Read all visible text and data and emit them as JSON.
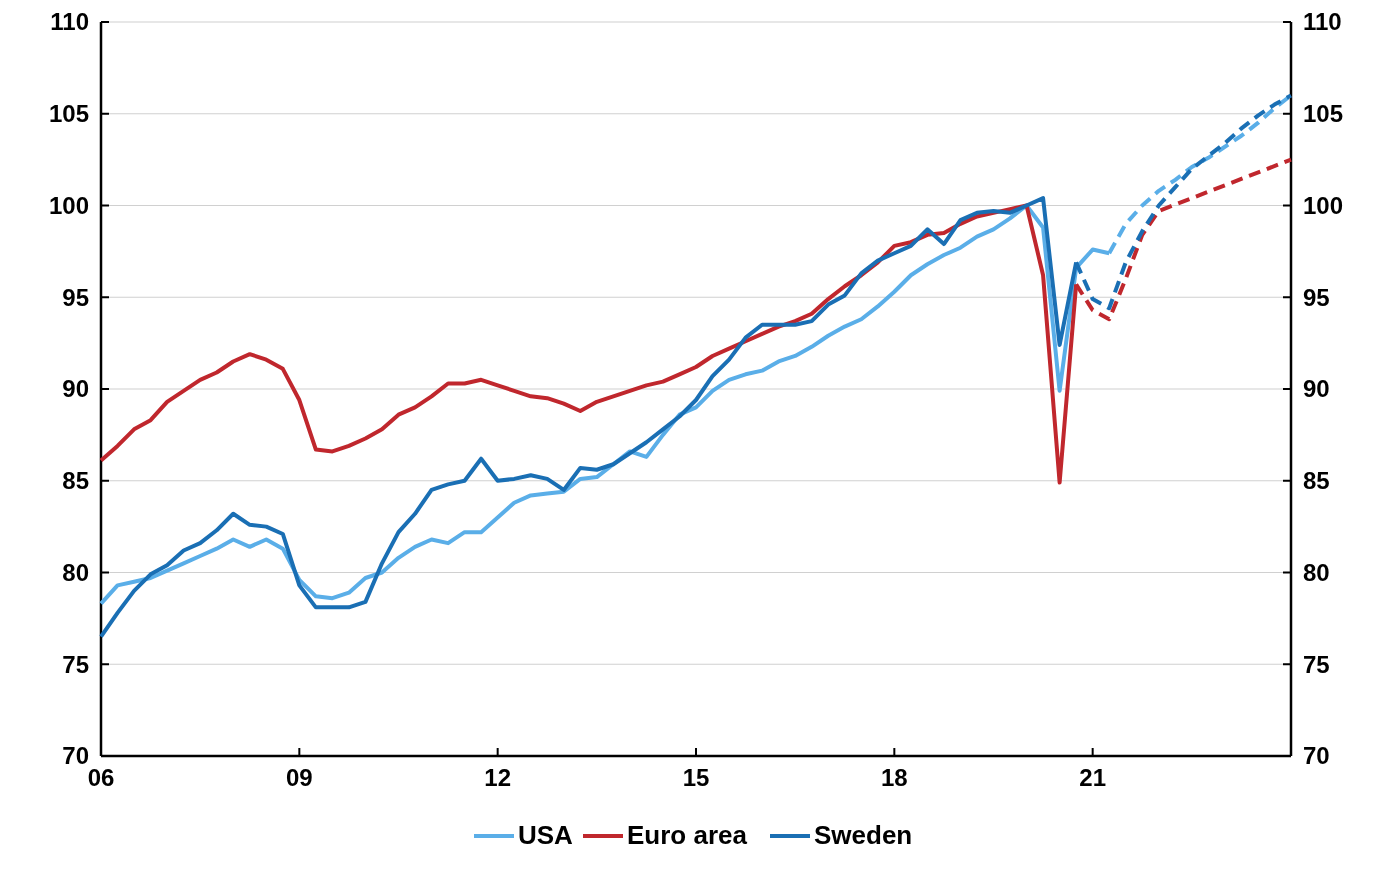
{
  "chart_data": {
    "type": "line",
    "xlim": [
      2006,
      2024
    ],
    "xticks": [
      {
        "value": 2006,
        "label": "06"
      },
      {
        "value": 2009,
        "label": "09"
      },
      {
        "value": 2012,
        "label": "12"
      },
      {
        "value": 2015,
        "label": "15"
      },
      {
        "value": 2018,
        "label": "18"
      },
      {
        "value": 2021,
        "label": "21"
      }
    ],
    "ylim": [
      70,
      110
    ],
    "yticks": [
      70,
      75,
      80,
      85,
      90,
      95,
      100,
      105,
      110
    ],
    "y2lim": [
      70,
      110
    ],
    "y2ticks": [
      70,
      75,
      80,
      85,
      90,
      95,
      100,
      105,
      110
    ],
    "grid": "y",
    "legend": "bottom",
    "series": [
      {
        "name": "USA",
        "color": "#5aaee8",
        "line_style": "solid",
        "x": [
          2006,
          2006.25,
          2006.5,
          2006.75,
          2007,
          2007.25,
          2007.5,
          2007.75,
          2008,
          2008.25,
          2008.5,
          2008.75,
          2009,
          2009.25,
          2009.5,
          2009.75,
          2010,
          2010.25,
          2010.5,
          2010.75,
          2011,
          2011.25,
          2011.5,
          2011.75,
          2012,
          2012.25,
          2012.5,
          2012.75,
          2013,
          2013.25,
          2013.5,
          2013.75,
          2014,
          2014.25,
          2014.5,
          2014.75,
          2015,
          2015.25,
          2015.5,
          2015.75,
          2016,
          2016.25,
          2016.5,
          2016.75,
          2017,
          2017.25,
          2017.5,
          2017.75,
          2018,
          2018.25,
          2018.5,
          2018.75,
          2019,
          2019.25,
          2019.5,
          2019.75,
          2020,
          2020.25,
          2020.5,
          2020.75,
          2021,
          2021.25
        ],
        "values": [
          78.3,
          79.3,
          79.5,
          79.7,
          80.1,
          80.5,
          80.9,
          81.3,
          81.8,
          81.4,
          81.8,
          81.3,
          79.6,
          78.7,
          78.6,
          78.9,
          79.7,
          80.0,
          80.8,
          81.4,
          81.8,
          81.6,
          82.2,
          82.2,
          83.0,
          83.8,
          84.2,
          84.3,
          84.4,
          85.1,
          85.2,
          85.9,
          86.6,
          86.3,
          87.5,
          88.6,
          89.0,
          89.9,
          90.5,
          90.8,
          91.0,
          91.5,
          91.8,
          92.3,
          92.9,
          93.4,
          93.8,
          94.5,
          95.3,
          96.2,
          96.8,
          97.3,
          97.7,
          98.3,
          98.7,
          99.3,
          100.0,
          98.8,
          89.9,
          96.6,
          97.6,
          97.4
        ]
      },
      {
        "name": "Euro area",
        "color": "#c0272d",
        "line_style": "solid",
        "x": [
          2006,
          2006.25,
          2006.5,
          2006.75,
          2007,
          2007.25,
          2007.5,
          2007.75,
          2008,
          2008.25,
          2008.5,
          2008.75,
          2009,
          2009.25,
          2009.5,
          2009.75,
          2010,
          2010.25,
          2010.5,
          2010.75,
          2011,
          2011.25,
          2011.5,
          2011.75,
          2012,
          2012.25,
          2012.5,
          2012.75,
          2013,
          2013.25,
          2013.5,
          2013.75,
          2014,
          2014.25,
          2014.5,
          2014.75,
          2015,
          2015.25,
          2015.5,
          2015.75,
          2016,
          2016.25,
          2016.5,
          2016.75,
          2017,
          2017.25,
          2017.5,
          2017.75,
          2018,
          2018.25,
          2018.5,
          2018.75,
          2019,
          2019.25,
          2019.5,
          2019.75,
          2020,
          2020.25,
          2020.5,
          2020.75
        ],
        "values": [
          86.1,
          86.9,
          87.8,
          88.3,
          89.3,
          89.9,
          90.5,
          90.9,
          91.5,
          91.9,
          91.6,
          91.1,
          89.4,
          86.7,
          86.6,
          86.9,
          87.3,
          87.8,
          88.6,
          89.0,
          89.6,
          90.3,
          90.3,
          90.5,
          90.2,
          89.9,
          89.6,
          89.5,
          89.2,
          88.8,
          89.3,
          89.6,
          89.9,
          90.2,
          90.4,
          90.8,
          91.2,
          91.8,
          92.2,
          92.6,
          93.0,
          93.4,
          93.7,
          94.1,
          94.9,
          95.6,
          96.2,
          96.9,
          97.8,
          98.0,
          98.4,
          98.5,
          99.0,
          99.4,
          99.6,
          99.8,
          100.0,
          96.2,
          84.9,
          95.7
        ]
      },
      {
        "name": "Sweden",
        "color": "#1a6fb4",
        "line_style": "solid",
        "x": [
          2006,
          2006.25,
          2006.5,
          2006.75,
          2007,
          2007.25,
          2007.5,
          2007.75,
          2008,
          2008.25,
          2008.5,
          2008.75,
          2009,
          2009.25,
          2009.5,
          2009.75,
          2010,
          2010.25,
          2010.5,
          2010.75,
          2011,
          2011.25,
          2011.5,
          2011.75,
          2012,
          2012.25,
          2012.5,
          2012.75,
          2013,
          2013.25,
          2013.5,
          2013.75,
          2014,
          2014.25,
          2014.5,
          2014.75,
          2015,
          2015.25,
          2015.5,
          2015.75,
          2016,
          2016.25,
          2016.5,
          2016.75,
          2017,
          2017.25,
          2017.5,
          2017.75,
          2018,
          2018.25,
          2018.5,
          2018.75,
          2019,
          2019.25,
          2019.5,
          2019.75,
          2020,
          2020.25,
          2020.5,
          2020.75
        ],
        "values": [
          76.5,
          77.8,
          79.0,
          79.9,
          80.4,
          81.2,
          81.6,
          82.3,
          83.2,
          82.6,
          82.5,
          82.1,
          79.3,
          78.1,
          78.1,
          78.1,
          78.4,
          80.5,
          82.2,
          83.2,
          84.5,
          84.8,
          85.0,
          86.2,
          85.0,
          85.1,
          85.3,
          85.1,
          84.5,
          85.7,
          85.6,
          85.9,
          86.5,
          87.1,
          87.8,
          88.5,
          89.4,
          90.7,
          91.6,
          92.8,
          93.5,
          93.5,
          93.5,
          93.7,
          94.6,
          95.1,
          96.3,
          97.0,
          97.4,
          97.8,
          98.7,
          97.9,
          99.2,
          99.6,
          99.7,
          99.6,
          100.0,
          100.4,
          92.4,
          96.9
        ]
      },
      {
        "color": "#5aaee8",
        "line_style": "dashed",
        "x": [
          2021.25,
          2021.5,
          2021.75,
          2022,
          2022.25,
          2022.5,
          2022.75,
          2023,
          2023.25,
          2023.5,
          2023.75,
          2024
        ],
        "values": [
          97.4,
          99.0,
          100.0,
          100.8,
          101.4,
          102.1,
          102.6,
          103.2,
          103.8,
          104.5,
          105.3,
          106.0
        ]
      },
      {
        "color": "#c0272d",
        "line_style": "dashed",
        "x": [
          2020.75,
          2021,
          2021.25,
          2021.5,
          2021.75,
          2022,
          2023,
          2024
        ],
        "values": [
          95.7,
          94.3,
          93.8,
          96.0,
          98.4,
          99.7,
          101.1,
          102.5
        ]
      },
      {
        "color": "#1a6fb4",
        "line_style": "dashed",
        "x": [
          2020.75,
          2021,
          2021.25,
          2021.5,
          2021.75,
          2022,
          2022.25,
          2022.5,
          2022.75,
          2023,
          2023.25,
          2023.5,
          2023.75,
          2024
        ],
        "values": [
          96.9,
          94.9,
          94.4,
          96.9,
          98.6,
          100.0,
          101.0,
          102.0,
          102.7,
          103.4,
          104.2,
          104.9,
          105.5,
          106.0
        ]
      }
    ]
  }
}
